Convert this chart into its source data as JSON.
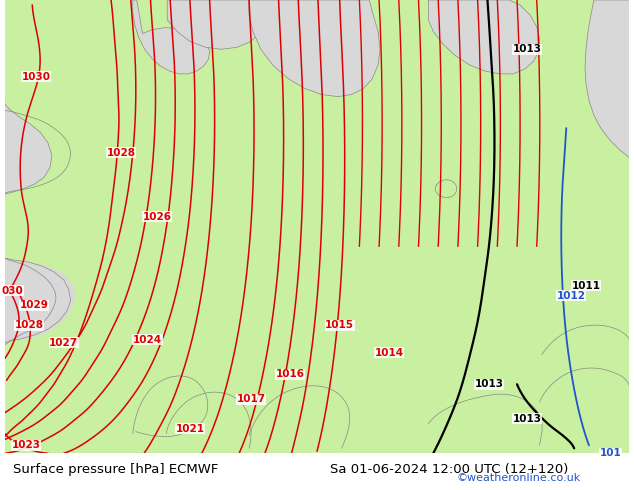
{
  "title_left": "Surface pressure [hPa] ECMWF",
  "title_right": "Sa 01-06-2024 12:00 UTC (12+120)",
  "watermark": "©weatheronline.co.uk",
  "bg_color": "#e0e0e0",
  "land_color": "#c8f0a0",
  "sea_color": "#d8d8d8",
  "coast_color": "#888888",
  "red": "#dd0000",
  "black": "#000000",
  "blue": "#2255cc",
  "title_fontsize": 9.5,
  "watermark_color": "#2255cc",
  "figsize": [
    6.34,
    4.9
  ],
  "dpi": 100
}
